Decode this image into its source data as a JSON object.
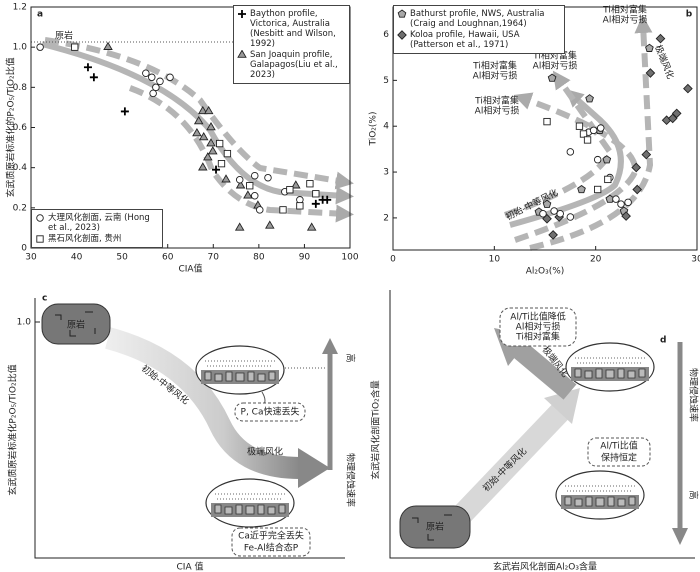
{
  "chart_data": [
    {
      "type": "scatter",
      "panel_label": "a",
      "xlabel": "CIA值",
      "ylabel": "玄武质原岩标准化的P₂O₅/TiO₂比值",
      "xlim": [
        30,
        100
      ],
      "xticks": [
        30,
        40,
        50,
        60,
        70,
        80,
        90,
        100
      ],
      "ylim": [
        0,
        1.2
      ],
      "yticks": [
        0,
        0.2,
        0.4,
        0.6,
        0.8,
        {
          "value": 1,
          "label": "1.0"
        },
        1.2
      ],
      "annotations": [
        "原岩"
      ],
      "series": [
        {
          "name": "Baython profile, Victorica, Australia (Nesbitt and Wilson, 1992)",
          "marker": "plus",
          "color": "#000000",
          "legend_loc": "upper right",
          "x": [
            42.5,
            43.8,
            50.6,
            70.6,
            92.5,
            94,
            95
          ],
          "values": [
            0.9,
            0.85,
            0.68,
            0.39,
            0.22,
            0.24,
            0.24
          ]
        },
        {
          "name": "San Joaquin profile, Galapagos(Liu et al., 2023)",
          "marker": "triangle",
          "color": "#9a9a9a",
          "legend_loc": "upper right",
          "x": [
            46.9,
            67.7,
            69,
            66.8,
            69.5,
            66.4,
            67.9,
            69.5,
            69.9,
            68.8,
            67.7,
            72.8,
            76,
            77.6,
            79.8,
            82.4,
            75.8,
            91.6,
            88.1
          ],
          "values": [
            1.0,
            0.68,
            0.68,
            0.63,
            0.6,
            0.57,
            0.55,
            0.52,
            0.48,
            0.45,
            0.4,
            0.34,
            0.31,
            0.26,
            0.21,
            0.11,
            0.1,
            0.1,
            0.31
          ]
        },
        {
          "name": "大理风化剖面, 云南 (Hong et al., 2023)",
          "marker": "circle",
          "color": "#ffffff",
          "legend_loc": "lower left",
          "x": [
            32,
            55.2,
            56.5,
            58.3,
            57.4,
            56.8,
            60.5,
            75.8,
            79.1,
            82,
            85.7,
            79.1,
            89,
            80.2
          ],
          "values": [
            1.0,
            0.87,
            0.85,
            0.83,
            0.8,
            0.77,
            0.85,
            0.34,
            0.36,
            0.35,
            0.28,
            0.26,
            0.24,
            0.19
          ]
        },
        {
          "name": "黑石风化剖面, 贵州",
          "marker": "square",
          "color": "#ffffff",
          "legend_loc": "lower left",
          "x": [
            39.6,
            71.4,
            73.1,
            71.8,
            78,
            86.8,
            91.2,
            92.5,
            89,
            85.3
          ],
          "values": [
            1.0,
            0.52,
            0.47,
            0.42,
            0.31,
            0.29,
            0.32,
            0.27,
            0.21,
            0.19
          ]
        }
      ]
    },
    {
      "type": "scatter",
      "panel_label": "b",
      "xlabel": "Al₂O₃(%)",
      "ylabel": "TiO₂(%)",
      "xlim": [
        0,
        30
      ],
      "xticks": [
        0,
        10,
        20,
        30
      ],
      "ylim": [
        1.3,
        6.6
      ],
      "yticks": [
        2,
        3,
        4,
        5,
        6
      ],
      "annotations": [
        [
          "Ti相对富集",
          "Al相对亏损"
        ],
        [
          "Ti相对富集",
          "Al相对亏损"
        ],
        [
          "Ti相对富集",
          "Al相对亏损"
        ],
        [
          "Ti相对富集",
          "Al相对亏损"
        ],
        "初始-中等风化",
        "极端风化"
      ],
      "series": [
        {
          "name": "Bathurst profile, NWS, Australia (Craig and Loughnan,1964)",
          "marker": "pentagon",
          "color": "#a8a8a8",
          "legend_loc": "upper left",
          "x": [
            15.7,
            19.4,
            20.4,
            21.1,
            21.4,
            14.4,
            15.2,
            18.6,
            22.8,
            25.3
          ],
          "values": [
            5.05,
            4.6,
            3.91,
            3.27,
            2.41,
            2.13,
            2.3,
            2.62,
            2.15,
            5.7
          ]
        },
        {
          "name": "Koloa profile, Hawaii, USA (Patterson et al., 1971)",
          "marker": "diamond",
          "color": "#707070",
          "legend_loc": "upper left",
          "x": [
            26.4,
            25.4,
            29.1,
            27,
            28,
            27.6,
            25,
            24,
            24.1,
            23,
            16.4,
            15.2,
            15.8
          ],
          "values": [
            5.91,
            5.16,
            4.82,
            4.13,
            4.28,
            4.17,
            3.38,
            3.1,
            2.62,
            2.04,
            2.02,
            1.98,
            1.63
          ]
        },
        {
          "marker": "circle",
          "color": "#ffffff",
          "x": [
            19.3,
            19.8,
            20.5,
            17.5,
            20.2,
            21.4,
            22,
            22.5,
            23.2,
            16.5,
            17.5,
            14.8,
            15.9
          ],
          "values": [
            3.87,
            3.91,
            3.96,
            3.44,
            3.27,
            2.88,
            2.41,
            2.3,
            2.34,
            2.09,
            2.02,
            2.09,
            2.15
          ]
        },
        {
          "marker": "square",
          "color": "#ffffff",
          "x": [
            15.2,
            18.4,
            18.8,
            19.2,
            20.2,
            21.2
          ],
          "values": [
            4.1,
            4.0,
            3.83,
            3.7,
            2.62,
            2.84
          ]
        }
      ]
    }
  ],
  "diagram_c": {
    "label": "c",
    "y_tick": "1.0",
    "ylabel": "玄武质原岩标准化P₂O₅/TiO₂比值",
    "xlabel": "CIA 值",
    "parent": "原岩",
    "stage_1": "初始-中等风化",
    "stage_2": "极端风化",
    "note_1": "P, Ca快速丢失",
    "note_2": [
      "Ca近乎完全丢失",
      "Fe-Al结合态P"
    ],
    "rate_high": "高",
    "rate_label": "物理侵蚀速率"
  },
  "diagram_d": {
    "label": "d",
    "ylabel": "玄武岩风化剖面TiO₂含量",
    "xlabel": "玄武岩风化剖面Al₂O₃含量",
    "parent": "原岩",
    "stage_1": "初始-中等风化",
    "stage_2": "极端风化",
    "note_1": [
      "Al/Ti比值降低",
      "Al相对亏损",
      "Ti相对富集"
    ],
    "note_2": [
      "Al/Ti比值",
      "保持恒定"
    ],
    "rate_high": "高",
    "rate_label": "物理侵蚀速率"
  }
}
